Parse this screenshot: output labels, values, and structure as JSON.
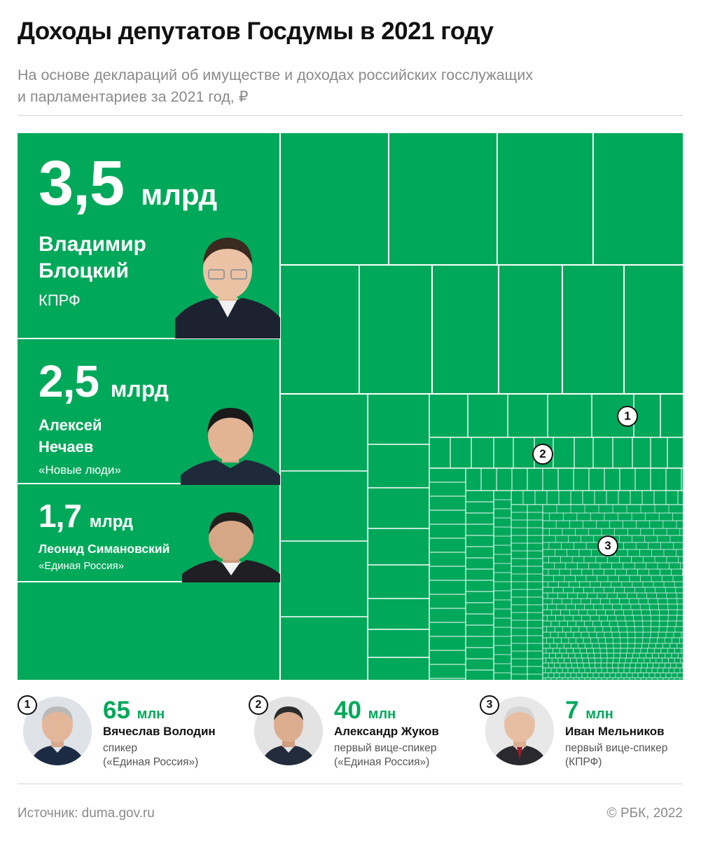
{
  "header": {
    "title": "Доходы депутатов Госдумы в 2021 году",
    "subtitle_line1": "На основе деклараций об имуществе и доходах российских госслужащих",
    "subtitle_line2": "и парламентариев за 2021 год, ₽"
  },
  "chart_data": {
    "type": "treemap",
    "title": "Доходы депутатов Госдумы в 2021 году",
    "unit": "₽",
    "fill_color": "#00a85a",
    "highlighted": [
      {
        "value_label": "3,5",
        "unit": "млрд",
        "value_rub": 3500000000,
        "name_line1": "Владимир",
        "name_line2": "Блоцкий",
        "party": "КПРФ"
      },
      {
        "value_label": "2,5",
        "unit": "млрд",
        "value_rub": 2500000000,
        "name_line1": "Алексей",
        "name_line2": "Нечаев",
        "party": "«Новые люди»"
      },
      {
        "value_label": "1,7",
        "unit": "млрд",
        "value_rub": 1700000000,
        "name": "Леонид Симановский",
        "party": "«Единая Россия»"
      }
    ],
    "markers": [
      {
        "number": "1",
        "value_label": "65",
        "unit": "млн",
        "value_rub": 65000000,
        "name": "Вячеслав Володин",
        "role_line1": "спикер",
        "role_line2": "(«Единая Россия»)"
      },
      {
        "number": "2",
        "value_label": "40",
        "unit": "млн",
        "value_rub": 40000000,
        "name": "Александр Жуков",
        "role_line1": "первый вице-спикер",
        "role_line2": "(«Единая Россия»)"
      },
      {
        "number": "3",
        "value_label": "7",
        "unit": "млн",
        "value_rub": 7000000,
        "name": "Иван Мельников",
        "role_line1": "первый вице-спикер",
        "role_line2": "(КПРФ)"
      }
    ]
  },
  "footer": {
    "source": "Источник: duma.gov.ru",
    "copyright": "©  РБК, 2022"
  }
}
